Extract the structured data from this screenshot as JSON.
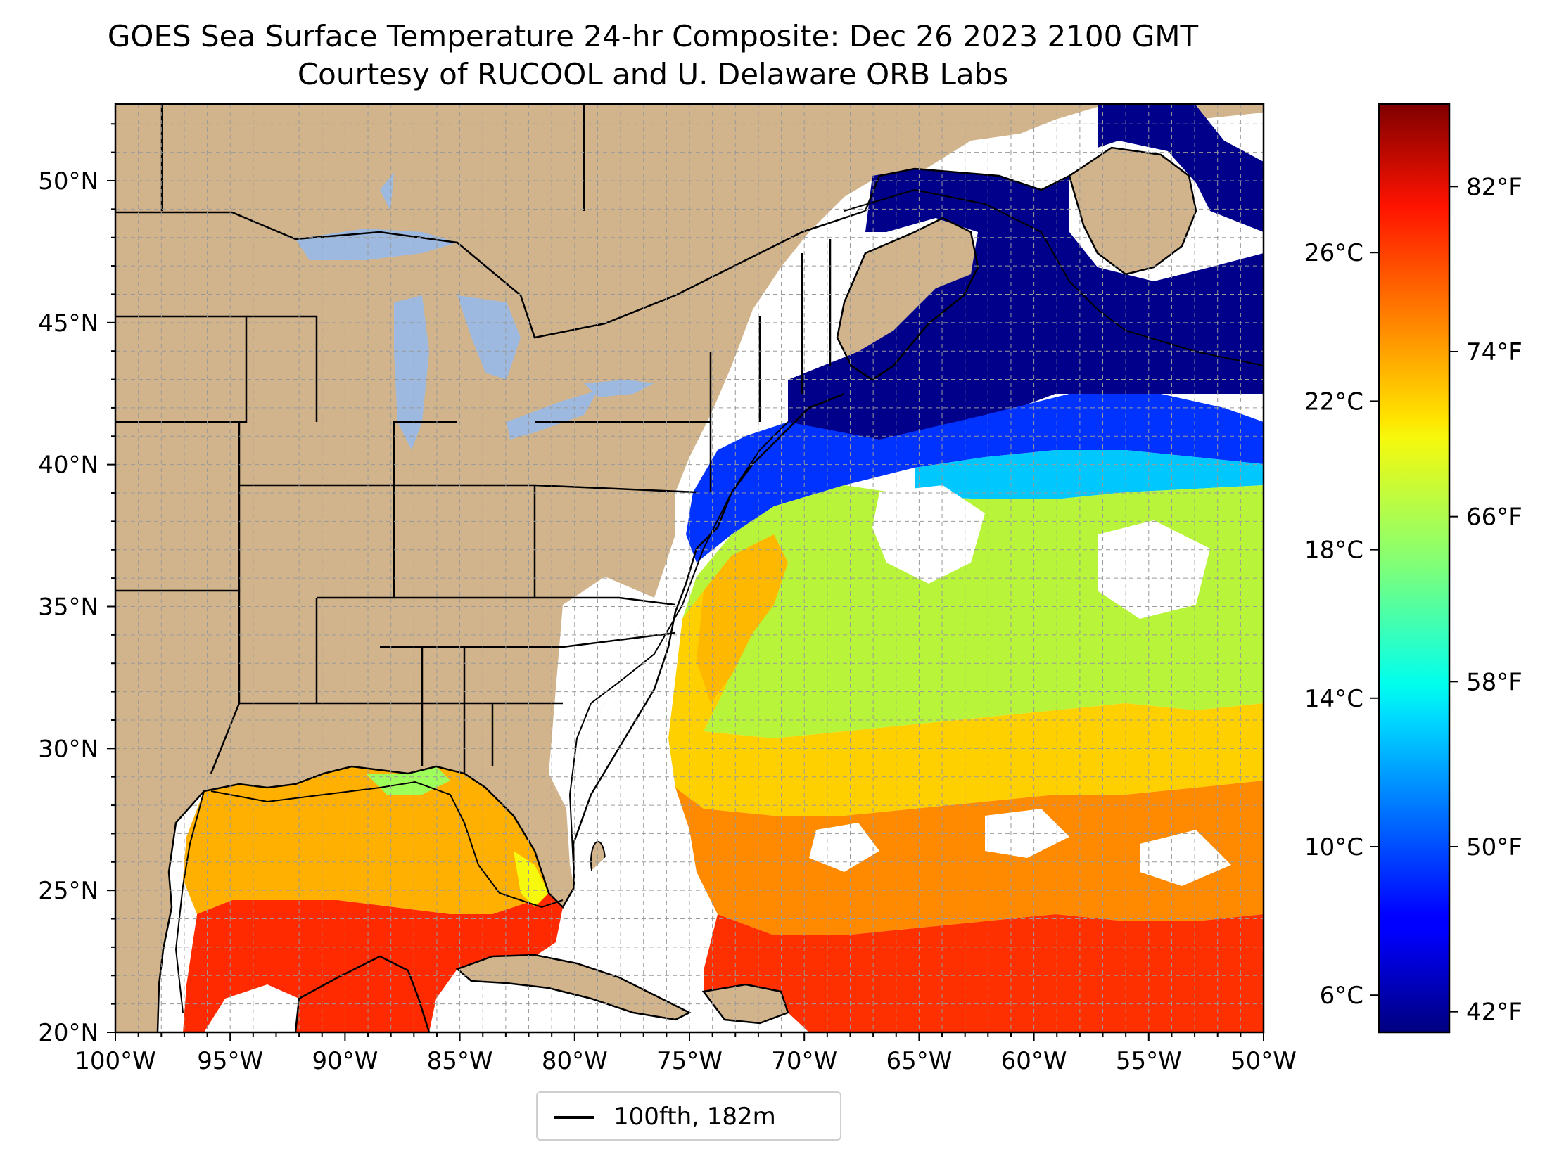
{
  "title": {
    "line1": "GOES Sea Surface Temperature 24-hr Composite: Dec 26 2023 2100 GMT",
    "line2": "Courtesy of RUCOOL and U. Delaware ORB Labs"
  },
  "map": {
    "extent": {
      "lon_min": -100,
      "lon_max": -50,
      "lat_min": 20,
      "lat_max": 52.7
    },
    "lon_ticks": [
      {
        "lon": -100,
        "label": "100°W"
      },
      {
        "lon": -95,
        "label": "95°W"
      },
      {
        "lon": -90,
        "label": "90°W"
      },
      {
        "lon": -85,
        "label": "85°W"
      },
      {
        "lon": -80,
        "label": "80°W"
      },
      {
        "lon": -75,
        "label": "75°W"
      },
      {
        "lon": -70,
        "label": "70°W"
      },
      {
        "lon": -65,
        "label": "65°W"
      },
      {
        "lon": -60,
        "label": "60°W"
      },
      {
        "lon": -55,
        "label": "55°W"
      },
      {
        "lon": -50,
        "label": "50°W"
      }
    ],
    "lat_ticks": [
      {
        "lat": 20,
        "label": "20°N"
      },
      {
        "lat": 25,
        "label": "25°N"
      },
      {
        "lat": 30,
        "label": "30°N"
      },
      {
        "lat": 35,
        "label": "35°N"
      },
      {
        "lat": 40,
        "label": "40°N"
      },
      {
        "lat": 45,
        "label": "45°N"
      },
      {
        "lat": 50,
        "label": "50°N"
      }
    ],
    "grid": true,
    "colors": {
      "land": "#d2b48c",
      "lakes": "#9db9e0",
      "no_data": "#ffffff",
      "borders": "#000000"
    }
  },
  "colorbar": {
    "colormap": "jet",
    "range_c": [
      5,
      30
    ],
    "celsius_ticks": [
      {
        "value": 6,
        "label": "6°C"
      },
      {
        "value": 10,
        "label": "10°C"
      },
      {
        "value": 14,
        "label": "14°C"
      },
      {
        "value": 18,
        "label": "18°C"
      },
      {
        "value": 22,
        "label": "22°C"
      },
      {
        "value": 26,
        "label": "26°C"
      }
    ],
    "fahrenheit_ticks": [
      {
        "value": 42,
        "label": "42°F"
      },
      {
        "value": 50,
        "label": "50°F"
      },
      {
        "value": 58,
        "label": "58°F"
      },
      {
        "value": 66,
        "label": "66°F"
      },
      {
        "value": 74,
        "label": "74°F"
      },
      {
        "value": 82,
        "label": "82°F"
      }
    ]
  },
  "legend": {
    "label": "100fth, 182m",
    "placement": "bottom-center"
  }
}
